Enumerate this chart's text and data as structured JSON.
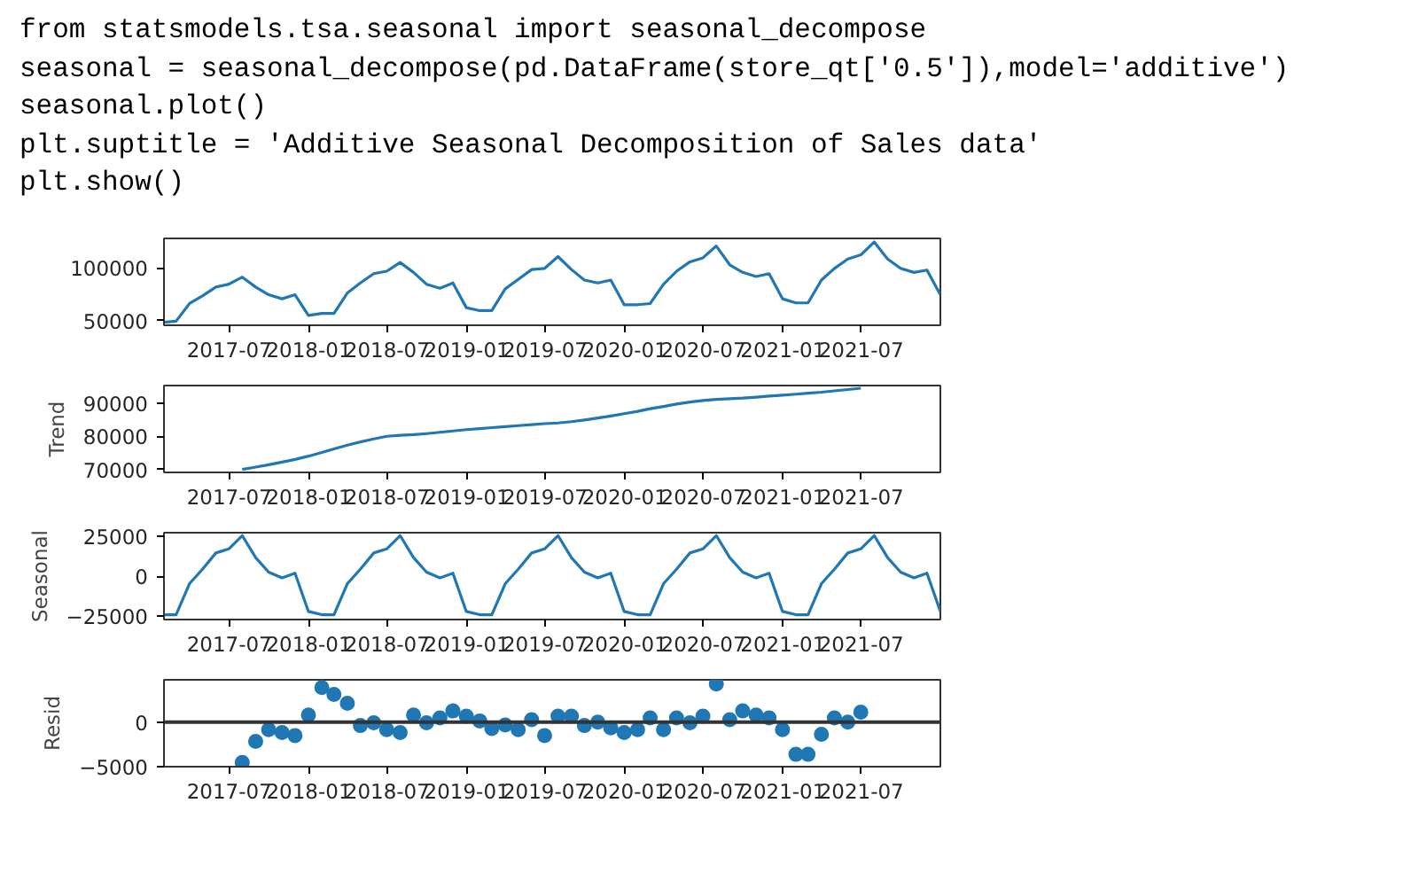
{
  "chart_data": [
    {
      "type": "line",
      "annotations": [
        "from statsmodels.tsa.seasonal import seasonal_decompose",
        "seasonal = seasonal_decompose(pd.DataFrame(store_qt['0.5']),model='additive')",
        "seasonal.plot()",
        "plt.suptitle = 'Additive Seasonal Decomposition of Sales data'",
        "plt.show()"
      ],
      "x": [
        "2017-01-31",
        "2017-02-28",
        "2017-03-31",
        "2017-04-30",
        "2017-05-31",
        "2017-06-30",
        "2017-07-31",
        "2017-08-31",
        "2017-09-30",
        "2017-10-31",
        "2017-11-30",
        "2017-12-31",
        "2018-01-31",
        "2018-02-28",
        "2018-03-31",
        "2018-04-30",
        "2018-05-31",
        "2018-06-30",
        "2018-07-31",
        "2018-08-31",
        "2018-09-30",
        "2018-10-31",
        "2018-11-30",
        "2018-12-31",
        "2019-01-31",
        "2019-02-28",
        "2019-03-31",
        "2019-04-30",
        "2019-05-31",
        "2019-06-30",
        "2019-07-31",
        "2019-08-31",
        "2019-09-30",
        "2019-10-31",
        "2019-11-30",
        "2019-12-31",
        "2020-01-31",
        "2020-02-29",
        "2020-03-31",
        "2020-04-30",
        "2020-05-31",
        "2020-06-30",
        "2020-07-31",
        "2020-08-31",
        "2020-09-30",
        "2020-10-31",
        "2020-11-30",
        "2020-12-31",
        "2021-01-31",
        "2021-02-28",
        "2021-03-31",
        "2021-04-30",
        "2021-05-31",
        "2021-06-30",
        "2021-07-31",
        "2021-08-31",
        "2021-09-30",
        "2021-10-31",
        "2021-11-30",
        "2021-12-31"
      ],
      "series": [
        {
          "color": "#1f77b4",
          "values": [
            48300,
            49400,
            66100,
            73300,
            81700,
            84400,
            91100,
            81700,
            74400,
            70600,
            74400,
            54900,
            56700,
            56700,
            76100,
            85600,
            94400,
            96700,
            105000,
            95600,
            84400,
            80600,
            85600,
            62200,
            59400,
            59400,
            80000,
            88900,
            98300,
            99400,
            110600,
            98300,
            88300,
            85600,
            88300,
            65000,
            65000,
            66100,
            84400,
            96700,
            105600,
            109400,
            120600,
            102800,
            95600,
            91700,
            94400,
            70600,
            66700,
            66700,
            88300,
            99400,
            108300,
            112200,
            124400,
            108300,
            99400,
            95600,
            97800,
            74400
          ]
        }
      ],
      "xlim": [
        "2017-01-31",
        "2021-12-31"
      ],
      "xticks": [
        "2017-07",
        "2018-01",
        "2018-07",
        "2019-01",
        "2019-07",
        "2020-01",
        "2020-07",
        "2021-01",
        "2021-07"
      ],
      "ylim": [
        45500,
        127800
      ],
      "yticks": [
        50000,
        100000
      ],
      "marker": "none",
      "line_style": "solid"
    },
    {
      "type": "line",
      "ylabel": "Trend",
      "x": [
        "2017-07-31",
        "2017-08-31",
        "2017-09-30",
        "2017-10-31",
        "2017-11-30",
        "2017-12-31",
        "2018-01-31",
        "2018-02-28",
        "2018-03-31",
        "2018-04-30",
        "2018-05-31",
        "2018-06-30",
        "2018-07-31",
        "2018-08-31",
        "2018-09-30",
        "2018-10-31",
        "2018-11-30",
        "2018-12-31",
        "2019-01-31",
        "2019-02-28",
        "2019-03-31",
        "2019-04-30",
        "2019-05-31",
        "2019-06-30",
        "2019-07-31",
        "2019-08-31",
        "2019-09-30",
        "2019-10-31",
        "2019-11-30",
        "2019-12-31",
        "2020-01-31",
        "2020-02-29",
        "2020-03-31",
        "2020-04-30",
        "2020-05-31",
        "2020-06-30",
        "2020-07-31",
        "2020-08-31",
        "2020-09-30",
        "2020-10-31",
        "2020-11-30",
        "2020-12-31",
        "2021-01-31",
        "2021-02-28",
        "2021-03-31",
        "2021-04-30",
        "2021-05-31",
        "2021-06-30"
      ],
      "series": [
        {
          "color": "#1f77b4",
          "values": [
            70000,
            70700,
            71400,
            72200,
            73000,
            74000,
            75100,
            76200,
            77300,
            78300,
            79200,
            80000,
            80300,
            80500,
            80800,
            81200,
            81600,
            82000,
            82300,
            82600,
            82900,
            83200,
            83500,
            83800,
            84000,
            84400,
            84900,
            85500,
            86100,
            86800,
            87500,
            88300,
            89000,
            89700,
            90300,
            90800,
            91100,
            91300,
            91500,
            91800,
            92100,
            92400,
            92700,
            93000,
            93300,
            93700,
            94100,
            94500
          ]
        }
      ],
      "xlim": [
        "2017-01-31",
        "2021-12-31"
      ],
      "xticks": [
        "2017-07",
        "2018-01",
        "2018-07",
        "2019-01",
        "2019-07",
        "2020-01",
        "2020-07",
        "2021-01",
        "2021-07"
      ],
      "ylim": [
        69100,
        95300
      ],
      "yticks": [
        70000,
        80000,
        90000
      ],
      "marker": "none",
      "line_style": "solid"
    },
    {
      "type": "line",
      "ylabel": "Seasonal",
      "x": [
        "2017-01-31",
        "2017-02-28",
        "2017-03-31",
        "2017-04-30",
        "2017-05-31",
        "2017-06-30",
        "2017-07-31",
        "2017-08-31",
        "2017-09-30",
        "2017-10-31",
        "2017-11-30",
        "2017-12-31",
        "2018-01-31",
        "2018-02-28",
        "2018-03-31",
        "2018-04-30",
        "2018-05-31",
        "2018-06-30",
        "2018-07-31",
        "2018-08-31",
        "2018-09-30",
        "2018-10-31",
        "2018-11-30",
        "2018-12-31",
        "2019-01-31",
        "2019-02-28",
        "2019-03-31",
        "2019-04-30",
        "2019-05-31",
        "2019-06-30",
        "2019-07-31",
        "2019-08-31",
        "2019-09-30",
        "2019-10-31",
        "2019-11-30",
        "2019-12-31",
        "2020-01-31",
        "2020-02-29",
        "2020-03-31",
        "2020-04-30",
        "2020-05-31",
        "2020-06-30",
        "2020-07-31",
        "2020-08-31",
        "2020-09-30",
        "2020-10-31",
        "2020-11-30",
        "2020-12-31",
        "2021-01-31",
        "2021-02-28",
        "2021-03-31",
        "2021-04-30",
        "2021-05-31",
        "2021-06-30",
        "2021-07-31",
        "2021-08-31",
        "2021-09-30",
        "2021-10-31",
        "2021-11-30",
        "2021-12-31"
      ],
      "series": [
        {
          "color": "#1f77b4",
          "values": [
            -24000,
            -24000,
            -4700,
            4300,
            14400,
            16900,
            25200,
            11500,
            2500,
            -1100,
            1800,
            -22000,
            -24000,
            -24000,
            -4700,
            4300,
            14400,
            16900,
            25200,
            11500,
            2500,
            -1100,
            1800,
            -22000,
            -24000,
            -24000,
            -4700,
            4300,
            14400,
            16900,
            25200,
            11500,
            2500,
            -1100,
            1800,
            -22000,
            -24000,
            -24000,
            -4700,
            4300,
            14400,
            16900,
            25200,
            11500,
            2500,
            -1100,
            1800,
            -22000,
            -24000,
            -24000,
            -4700,
            4300,
            14400,
            16900,
            25200,
            11500,
            2500,
            -1100,
            1800,
            -22000
          ]
        }
      ],
      "xlim": [
        "2017-01-31",
        "2021-12-31"
      ],
      "xticks": [
        "2017-07",
        "2018-01",
        "2018-07",
        "2019-01",
        "2019-07",
        "2020-01",
        "2020-07",
        "2021-01",
        "2021-07"
      ],
      "ylim": [
        -27000,
        27000
      ],
      "yticks": [
        {
          "value": -25000,
          "label": "−25000"
        },
        0,
        25000
      ],
      "marker": "none",
      "line_style": "solid"
    },
    {
      "type": "scatter",
      "ylabel": "Resid",
      "x": [
        "2017-07-31",
        "2017-08-31",
        "2017-09-30",
        "2017-10-31",
        "2017-11-30",
        "2017-12-31",
        "2018-01-31",
        "2018-02-28",
        "2018-03-31",
        "2018-04-30",
        "2018-05-31",
        "2018-06-30",
        "2018-07-31",
        "2018-08-31",
        "2018-09-30",
        "2018-10-31",
        "2018-11-30",
        "2018-12-31",
        "2019-01-31",
        "2019-02-28",
        "2019-03-31",
        "2019-04-30",
        "2019-05-31",
        "2019-06-30",
        "2019-07-31",
        "2019-08-31",
        "2019-09-30",
        "2019-10-31",
        "2019-11-30",
        "2019-12-31",
        "2020-01-31",
        "2020-02-29",
        "2020-03-31",
        "2020-04-30",
        "2020-05-31",
        "2020-06-30",
        "2020-07-31",
        "2020-08-31",
        "2020-09-30",
        "2020-10-31",
        "2020-11-30",
        "2020-12-31",
        "2021-01-31",
        "2021-02-28",
        "2021-03-31",
        "2021-04-30",
        "2021-05-31",
        "2021-06-30"
      ],
      "series": [
        {
          "color": "#1f77b4",
          "values": [
            -4540,
            -2170,
            -860,
            -1180,
            -1510,
            790,
            3880,
            3090,
            2110,
            -390,
            -70,
            -860,
            -1180,
            790,
            -70,
            460,
            1250,
            660,
            130,
            -720,
            -330,
            -860,
            260,
            -1510,
            660,
            660,
            -390,
            0,
            -660,
            -1180,
            -860,
            460,
            -860,
            460,
            -70,
            660,
            4280,
            260,
            1250,
            790,
            460,
            -860,
            -3620,
            -3620,
            -1380,
            460,
            0,
            1120
          ]
        }
      ],
      "xlim": [
        "2017-01-31",
        "2021-12-31"
      ],
      "xticks": [
        "2017-07",
        "2018-01",
        "2018-07",
        "2019-01",
        "2019-07",
        "2020-01",
        "2020-07",
        "2021-01",
        "2021-07"
      ],
      "ylim": [
        -5000,
        4740
      ],
      "yticks": [
        {
          "value": -5000,
          "label": "−5000"
        },
        0
      ],
      "marker": "circle",
      "ref_lines": [
        {
          "axis": "y",
          "value": 0,
          "color": "#333333"
        }
      ]
    }
  ]
}
